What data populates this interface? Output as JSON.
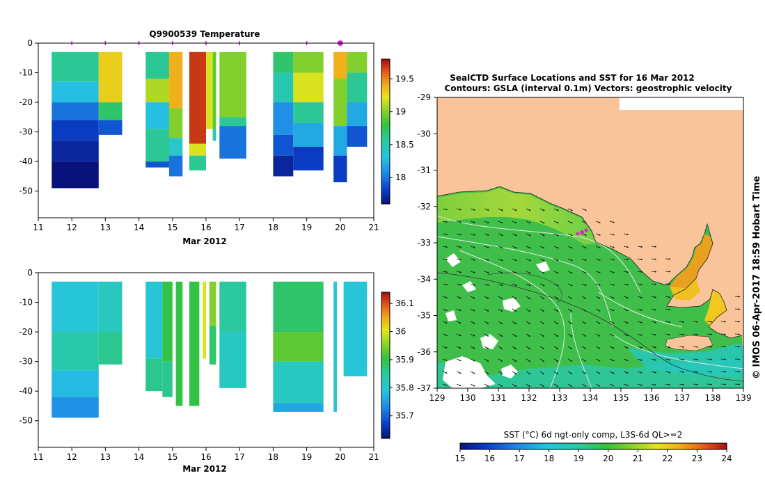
{
  "credit": "© IMOS 06-Apr-2017 18:59 Hobart Time",
  "temp_title": "Q9900539  Temperature",
  "map_title_1": "SealCTD Surface Locations and SST for 16 Mar 2012",
  "map_title_2": "Contours: GSLA (interval 0.1m)  Vectors: geostrophic velocity",
  "sst_cbar_label": "SST (°C) 6d ngt-only comp, L3S-6d QL>=2",
  "colors": {
    "land": "#f9c49a",
    "ocean_warm": "#41c83a",
    "ocean_mid": "#33b85a",
    "ocean_cool": "#2ad0b0",
    "cloud": "#ffffff",
    "marker": "#e020d0"
  },
  "chart_data": [
    {
      "type": "heatmap",
      "name": "temperature",
      "xlabel": "Mar 2012",
      "xlim": [
        11,
        21
      ],
      "ylim": [
        -59,
        0
      ],
      "xticks": [
        "11",
        "12",
        "13",
        "14",
        "15",
        "16",
        "17",
        "18",
        "19",
        "20",
        "21"
      ],
      "yticks": [
        "0",
        "-10",
        "-20",
        "-30",
        "-40",
        "-50"
      ],
      "colorbar": {
        "min": 17.6,
        "max": 19.8,
        "ticks": [
          "18",
          "18.5",
          "19",
          "19.5"
        ]
      },
      "surfacing_markers": [
        12,
        13,
        14,
        15,
        16,
        17,
        19,
        20
      ],
      "highlight_marker": 20,
      "profiles": [
        {
          "x0": 11.4,
          "x1": 12.8,
          "bins": [
            [
              -3,
              -13,
              18.6
            ],
            [
              -13,
              -20,
              18.3
            ],
            [
              -20,
              -26,
              18.0
            ],
            [
              -26,
              -33,
              17.8
            ],
            [
              -33,
              -40,
              17.7
            ],
            [
              -40,
              -49,
              17.6
            ]
          ]
        },
        {
          "x0": 12.8,
          "x1": 13.5,
          "bins": [
            [
              -3,
              -20,
              19.3
            ],
            [
              -20,
              -26,
              18.7
            ],
            [
              -26,
              -31,
              17.9
            ]
          ]
        },
        {
          "x0": 14.2,
          "x1": 14.9,
          "bins": [
            [
              -3,
              -12,
              18.6
            ],
            [
              -12,
              -20,
              19.1
            ],
            [
              -20,
              -29,
              18.3
            ],
            [
              -29,
              -40,
              18.6
            ],
            [
              -40,
              -42,
              17.9
            ]
          ]
        },
        {
          "x0": 14.9,
          "x1": 15.3,
          "bins": [
            [
              -3,
              -22,
              19.4
            ],
            [
              -22,
              -32,
              19.0
            ],
            [
              -32,
              -38,
              18.4
            ],
            [
              -38,
              -45,
              18.0
            ]
          ]
        },
        {
          "x0": 15.5,
          "x1": 16.0,
          "bins": [
            [
              -3,
              -34,
              19.7
            ],
            [
              -34,
              -38,
              19.2
            ],
            [
              -38,
              -43,
              18.6
            ]
          ]
        },
        {
          "x0": 16.0,
          "x1": 16.2,
          "bins": [
            [
              -3,
              -29,
              19.2
            ]
          ]
        },
        {
          "x0": 16.2,
          "x1": 16.3,
          "bins": [
            [
              -3,
              -29,
              18.9
            ],
            [
              -29,
              -33,
              18.5
            ]
          ]
        },
        {
          "x0": 16.4,
          "x1": 17.2,
          "bins": [
            [
              -3,
              -25,
              19.0
            ],
            [
              -25,
              -28,
              18.6
            ],
            [
              -28,
              -39,
              18.0
            ]
          ]
        },
        {
          "x0": 18.0,
          "x1": 18.6,
          "bins": [
            [
              -3,
              -10,
              18.7
            ],
            [
              -10,
              -20,
              18.5
            ],
            [
              -20,
              -31,
              18.1
            ],
            [
              -31,
              -38,
              17.9
            ],
            [
              -38,
              -45,
              17.7
            ]
          ]
        },
        {
          "x0": 18.6,
          "x1": 19.5,
          "bins": [
            [
              -3,
              -10,
              19.0
            ],
            [
              -10,
              -20,
              19.2
            ],
            [
              -20,
              -27,
              18.6
            ],
            [
              -27,
              -35,
              18.2
            ],
            [
              -35,
              -43,
              17.8
            ]
          ]
        },
        {
          "x0": 19.8,
          "x1": 20.2,
          "bins": [
            [
              -3,
              -12,
              19.4
            ],
            [
              -12,
              -28,
              19.0
            ],
            [
              -28,
              -38,
              18.2
            ],
            [
              -38,
              -47,
              17.8
            ]
          ]
        },
        {
          "x0": 20.2,
          "x1": 20.8,
          "bins": [
            [
              -3,
              -10,
              19.0
            ],
            [
              -10,
              -20,
              18.6
            ],
            [
              -20,
              -28,
              18.2
            ],
            [
              -28,
              -35,
              17.9
            ]
          ]
        }
      ]
    },
    {
      "type": "heatmap",
      "name": "salinity",
      "xlabel": "Mar 2012",
      "xlim": [
        11,
        21
      ],
      "ylim": [
        -59,
        0
      ],
      "xticks": [
        "11",
        "12",
        "13",
        "14",
        "15",
        "16",
        "17",
        "18",
        "19",
        "20",
        "21"
      ],
      "yticks": [
        "0",
        "-10",
        "-20",
        "-30",
        "-40",
        "-50"
      ],
      "colorbar": {
        "min": 35.62,
        "max": 36.14,
        "ticks": [
          "35.7",
          "35.8",
          "35.9",
          "36",
          "36.1"
        ]
      },
      "profiles": [
        {
          "x0": 11.4,
          "x1": 12.8,
          "bins": [
            [
              -3,
              -20,
              35.8
            ],
            [
              -20,
              -33,
              35.84
            ],
            [
              -33,
              -42,
              35.78
            ],
            [
              -42,
              -49,
              35.74
            ]
          ]
        },
        {
          "x0": 12.8,
          "x1": 13.5,
          "bins": [
            [
              -3,
              -20,
              35.82
            ],
            [
              -20,
              -31,
              35.86
            ]
          ]
        },
        {
          "x0": 14.2,
          "x1": 14.7,
          "bins": [
            [
              -3,
              -29,
              35.8
            ],
            [
              -29,
              -40,
              35.86
            ]
          ]
        },
        {
          "x0": 14.7,
          "x1": 15.0,
          "bins": [
            [
              -3,
              -30,
              35.9
            ],
            [
              -30,
              -42,
              35.86
            ]
          ]
        },
        {
          "x0": 15.1,
          "x1": 15.3,
          "bins": [
            [
              -3,
              -45,
              35.9
            ]
          ]
        },
        {
          "x0": 15.5,
          "x1": 15.8,
          "bins": [
            [
              -3,
              -45,
              35.9
            ]
          ]
        },
        {
          "x0": 15.9,
          "x1": 16.0,
          "bins": [
            [
              -3,
              -29,
              36.0
            ]
          ]
        },
        {
          "x0": 16.1,
          "x1": 16.3,
          "bins": [
            [
              -3,
              -18,
              35.95
            ],
            [
              -18,
              -31,
              35.88
            ]
          ]
        },
        {
          "x0": 16.4,
          "x1": 17.2,
          "bins": [
            [
              -3,
              -20,
              35.85
            ],
            [
              -20,
              -39,
              35.82
            ]
          ]
        },
        {
          "x0": 18.0,
          "x1": 19.5,
          "bins": [
            [
              -3,
              -20,
              35.88
            ],
            [
              -20,
              -30,
              35.93
            ],
            [
              -30,
              -44,
              35.82
            ],
            [
              -44,
              -47,
              35.76
            ]
          ]
        },
        {
          "x0": 19.8,
          "x1": 19.9,
          "bins": [
            [
              -3,
              -47,
              35.8
            ]
          ]
        },
        {
          "x0": 20.1,
          "x1": 20.8,
          "bins": [
            [
              -3,
              -35,
              35.8
            ]
          ]
        }
      ]
    },
    {
      "type": "heatmap",
      "name": "sst_map",
      "xlim": [
        129,
        139
      ],
      "ylim": [
        -37,
        -29
      ],
      "xticks": [
        "129",
        "130",
        "131",
        "132",
        "133",
        "134",
        "135",
        "136",
        "137",
        "138",
        "139"
      ],
      "yticks": [
        "-29",
        "-30",
        "-31",
        "-32",
        "-33",
        "-34",
        "-35",
        "-36",
        "-37"
      ],
      "colorbar": {
        "min": 15,
        "max": 24,
        "ticks": [
          "15",
          "16",
          "17",
          "18",
          "19",
          "20",
          "21",
          "22",
          "23",
          "24"
        ]
      },
      "seal_location": [
        133.7,
        -32.7
      ]
    }
  ]
}
